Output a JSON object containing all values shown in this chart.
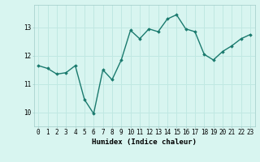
{
  "x": [
    0,
    1,
    2,
    3,
    4,
    5,
    6,
    7,
    8,
    9,
    10,
    11,
    12,
    13,
    14,
    15,
    16,
    17,
    18,
    19,
    20,
    21,
    22,
    23
  ],
  "y": [
    11.65,
    11.55,
    11.35,
    11.4,
    11.65,
    10.45,
    9.95,
    11.5,
    11.15,
    11.85,
    12.9,
    12.6,
    12.95,
    12.85,
    13.3,
    13.45,
    12.95,
    12.85,
    12.05,
    11.85,
    12.15,
    12.35,
    12.6,
    12.75
  ],
  "line_color": "#1a7a6e",
  "marker": "D",
  "marker_size": 1.8,
  "bg_color": "#d8f5f0",
  "grid_color": "#c0e8e2",
  "xlabel": "Humidex (Indice chaleur)",
  "xlabel_fontsize": 6.5,
  "yticks": [
    10,
    11,
    12,
    13
  ],
  "xticks": [
    0,
    1,
    2,
    3,
    4,
    5,
    6,
    7,
    8,
    9,
    10,
    11,
    12,
    13,
    14,
    15,
    16,
    17,
    18,
    19,
    20,
    21,
    22,
    23
  ],
  "ylim": [
    9.5,
    13.8
  ],
  "xlim": [
    -0.5,
    23.5
  ],
  "tick_fontsize": 5.5,
  "linewidth": 1.0
}
